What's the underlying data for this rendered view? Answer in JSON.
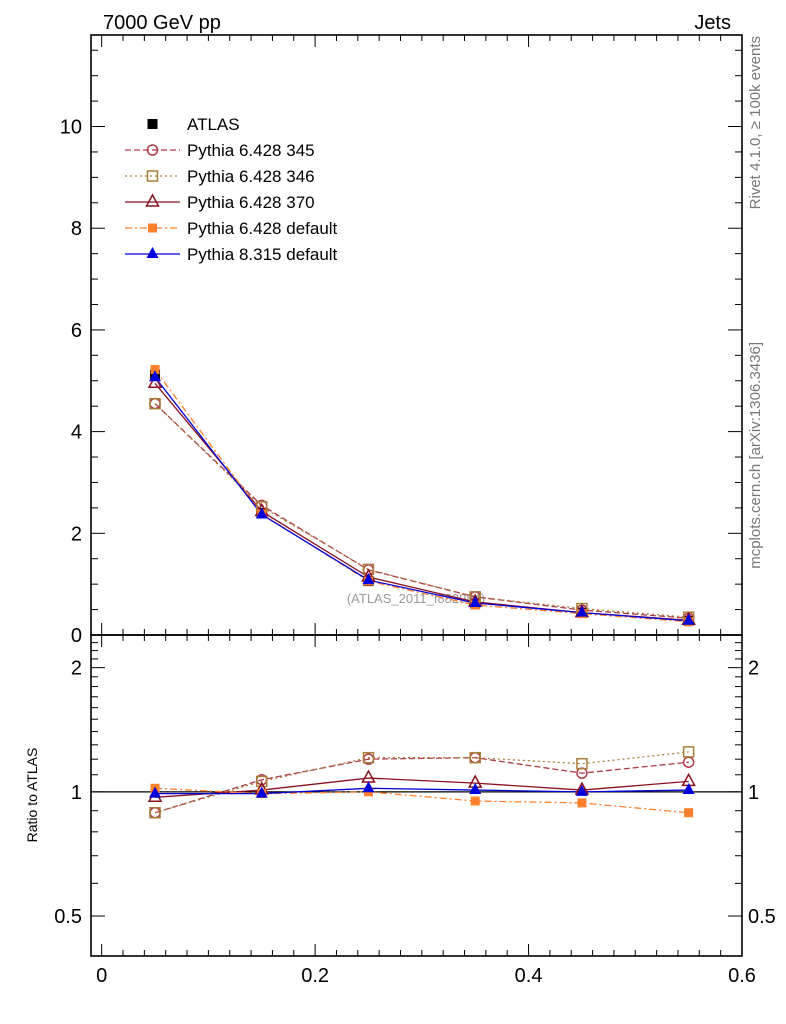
{
  "header": {
    "left_title": "7000 GeV pp",
    "right_title": "Jets",
    "side_label_top": "Rivet 4.1.0, ≥ 100k events",
    "side_label_bottom": "mcplots.cern.ch [arXiv:1306.3436]"
  },
  "chart_data": [
    {
      "type": "line",
      "panel": "main",
      "title": "",
      "xlabel": "",
      "ylabel": "",
      "watermark": "(ATLAS_2011_I882984)",
      "xlim": [
        -0.01,
        0.6
      ],
      "ylim": [
        0,
        11.8
      ],
      "x": [
        0.05,
        0.15,
        0.25,
        0.35,
        0.45,
        0.55
      ],
      "x_ticks": [
        "0",
        "0.2",
        "0.4",
        "0.6"
      ],
      "y_ticks": [
        "0",
        "2",
        "4",
        "6",
        "8",
        "10"
      ],
      "legend_position": "top-left",
      "series": [
        {
          "name": "ATLAS",
          "color": "#000000",
          "marker": "square-filled",
          "line": "none",
          "values": [
            5.12,
            2.4,
            1.06,
            0.62,
            0.44,
            0.28
          ]
        },
        {
          "name": "Pythia 6.428 345",
          "color": "#b03a48",
          "marker": "circle-open",
          "line": "dashed",
          "values": [
            4.55,
            2.55,
            1.28,
            0.75,
            0.49,
            0.33
          ]
        },
        {
          "name": "Pythia 6.428 346",
          "color": "#a87d3a",
          "marker": "square-open",
          "line": "dotted",
          "values": [
            4.55,
            2.52,
            1.29,
            0.75,
            0.52,
            0.35
          ]
        },
        {
          "name": "Pythia 6.428 370",
          "color": "#8b1020",
          "marker": "triangle-open",
          "line": "solid",
          "values": [
            4.95,
            2.43,
            1.14,
            0.65,
            0.44,
            0.29
          ]
        },
        {
          "name": "Pythia 6.428 default",
          "color": "#ff7f2a",
          "marker": "square-filled-small",
          "line": "dashdot",
          "values": [
            5.22,
            2.38,
            1.06,
            0.59,
            0.42,
            0.26
          ]
        },
        {
          "name": "Pythia 8.315 default",
          "color": "#0000dd",
          "marker": "triangle-filled",
          "line": "solid",
          "values": [
            5.07,
            2.37,
            1.08,
            0.63,
            0.44,
            0.28
          ]
        }
      ]
    },
    {
      "type": "line",
      "panel": "ratio",
      "title": "",
      "xlabel": "",
      "ylabel": "Ratio to ATLAS",
      "yscale": "log",
      "xlim": [
        -0.01,
        0.6
      ],
      "ylim": [
        0.4,
        2.4
      ],
      "x": [
        0.05,
        0.15,
        0.25,
        0.35,
        0.45,
        0.55
      ],
      "x_ticks": [
        "0",
        "0.2",
        "0.4",
        "0.6"
      ],
      "y_ticks": [
        "0.5",
        "1",
        "2"
      ],
      "reference": 1,
      "series": [
        {
          "name": "Pythia 6.428 345",
          "values": [
            0.89,
            1.07,
            1.2,
            1.21,
            1.11,
            1.18
          ]
        },
        {
          "name": "Pythia 6.428 346",
          "values": [
            0.89,
            1.06,
            1.21,
            1.21,
            1.17,
            1.25
          ]
        },
        {
          "name": "Pythia 6.428 370",
          "values": [
            0.97,
            1.01,
            1.08,
            1.05,
            1.01,
            1.06
          ]
        },
        {
          "name": "Pythia 6.428 default",
          "values": [
            1.02,
            0.99,
            1.0,
            0.95,
            0.94,
            0.89
          ]
        },
        {
          "name": "Pythia 8.315 default",
          "values": [
            0.99,
            0.99,
            1.02,
            1.01,
            1.0,
            1.01
          ]
        }
      ]
    }
  ]
}
